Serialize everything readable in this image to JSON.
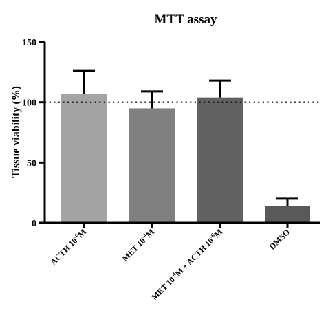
{
  "chart_data": {
    "type": "bar",
    "title": "MTT assay",
    "xlabel": "",
    "ylabel": "Tissue viability (%)",
    "ylim": [
      0,
      150
    ],
    "yticks": [
      "0",
      "50",
      "100",
      "150"
    ],
    "reference_line": {
      "value": 100,
      "style": "dotted"
    },
    "grid": false,
    "categories": [
      {
        "base": "ACTH 10",
        "exp": "-6",
        "tail": "M"
      },
      {
        "base": "MET 10",
        "exp": "-4",
        "tail": "M"
      },
      {
        "base": "MET 10",
        "exp": "-4",
        "tail": "M + ACTH 10",
        "exp2": "-6",
        "tail2": "M"
      },
      {
        "base": "DMSO"
      }
    ],
    "series": [
      {
        "values": [
          107,
          95,
          104,
          14
        ],
        "errors": [
          19,
          14,
          14,
          6
        ],
        "colors": [
          "#a3a3a3",
          "#808080",
          "#616161",
          "#595959"
        ]
      }
    ]
  }
}
